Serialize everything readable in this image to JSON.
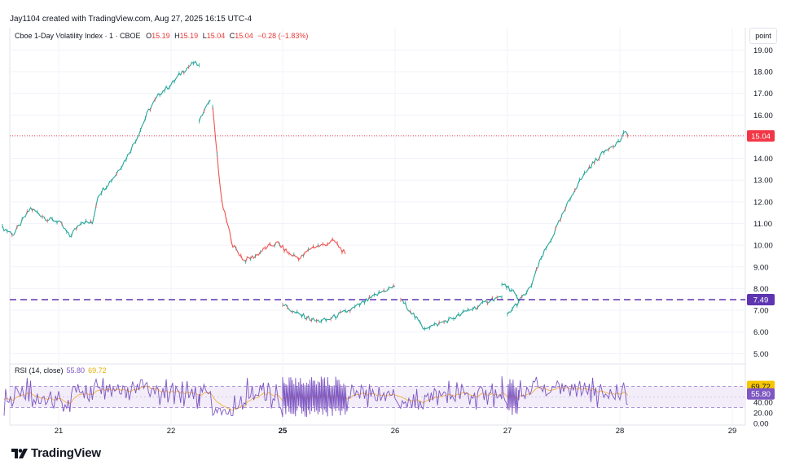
{
  "header": {
    "caption": "Jay1104 created with TradingView.com, Aug 27, 2025 16:15 UTC-4"
  },
  "legend": {
    "symbol": "Cboe 1-Day Volatility Index · 1 · CBOE",
    "open_label": "O",
    "open": "15.19",
    "high_label": "H",
    "high": "15.19",
    "low_label": "L",
    "low": "15.04",
    "close_label": "C",
    "close": "15.04",
    "change": "−0.28 (−1.83%)"
  },
  "rsi_legend": {
    "label": "RSI (14, close)",
    "rsi": "55.80",
    "ma": "69.72"
  },
  "unit_button": "point",
  "logo_text": "TradingView",
  "colors": {
    "up": "#26a69a",
    "down": "#ef5350",
    "dashed_level": "#5e35b1",
    "rsi_line": "#7e57c2",
    "rsi_ma": "#f5b041",
    "rsi_band": "#ede7f6",
    "last_price": "#f23645"
  },
  "chart_data": [
    {
      "type": "line",
      "title": "Cboe 1-Day Volatility Index · 1 · CBOE",
      "x_tick_labels": [
        "21",
        "22",
        "25",
        "26",
        "27",
        "28",
        "29"
      ],
      "y_ticks": [
        "19.00",
        "18.00",
        "17.00",
        "16.00",
        "15.00",
        "14.00",
        "13.00",
        "12.00",
        "11.00",
        "10.00",
        "9.00",
        "8.00",
        "7.00",
        "6.00",
        "5.00"
      ],
      "ylim": [
        4.6,
        19.5
      ],
      "last_price": "15.04",
      "horizontal_level": "7.49",
      "series": [
        {
          "segments": [
            [
              [
                20.5,
                10.8
              ],
              [
                20.6,
                10.5
              ],
              [
                20.75,
                11.7
              ],
              [
                20.9,
                11.2
              ],
              [
                21.0,
                11.1
              ],
              [
                21.1,
                10.4
              ],
              [
                21.2,
                11.1
              ],
              [
                21.3,
                11.0
              ],
              [
                21.35,
                12.3
              ],
              [
                21.5,
                13.2
              ],
              [
                21.6,
                14.0
              ],
              [
                21.7,
                15.0
              ],
              [
                21.8,
                16.2
              ],
              [
                21.9,
                17.0
              ],
              [
                22.0,
                17.4
              ],
              [
                22.1,
                18.0
              ],
              [
                22.2,
                18.4
              ],
              [
                22.25,
                18.3
              ]
            ],
            [
              [
                22.25,
                15.8
              ],
              [
                22.35,
                16.7
              ]
            ],
            [
              [
                22.37,
                16.3
              ],
              [
                22.45,
                12.0
              ],
              [
                22.55,
                10.0
              ],
              [
                22.65,
                9.3
              ],
              [
                22.75,
                9.5
              ],
              [
                22.85,
                9.9
              ],
              [
                22.95,
                10.1
              ],
              [
                23.05,
                9.6
              ],
              [
                23.15,
                9.4
              ],
              [
                23.25,
                9.9
              ],
              [
                23.35,
                10.0
              ],
              [
                23.45,
                10.2
              ],
              [
                23.55,
                9.6
              ]
            ],
            [
              [
                25.0,
                7.3
              ],
              [
                25.1,
                6.9
              ],
              [
                25.2,
                6.7
              ],
              [
                25.3,
                6.5
              ],
              [
                25.4,
                6.55
              ],
              [
                25.5,
                6.8
              ],
              [
                25.6,
                7.0
              ],
              [
                25.7,
                7.3
              ],
              [
                25.8,
                7.6
              ],
              [
                25.9,
                7.9
              ],
              [
                26.0,
                8.1
              ]
            ],
            [
              [
                26.05,
                7.5
              ],
              [
                26.15,
                6.9
              ],
              [
                26.25,
                6.2
              ],
              [
                26.35,
                6.3
              ],
              [
                26.45,
                6.5
              ],
              [
                26.55,
                6.7
              ],
              [
                26.65,
                7.0
              ],
              [
                26.75,
                7.2
              ],
              [
                26.85,
                7.5
              ],
              [
                26.95,
                7.6
              ]
            ],
            [
              [
                26.95,
                8.2
              ],
              [
                27.05,
                7.9
              ],
              [
                27.1,
                7.4
              ]
            ],
            [
              [
                27.0,
                6.8
              ],
              [
                27.1,
                7.4
              ],
              [
                27.2,
                8.0
              ],
              [
                27.3,
                9.4
              ],
              [
                27.4,
                10.4
              ],
              [
                27.5,
                11.5
              ],
              [
                27.6,
                12.6
              ],
              [
                27.7,
                13.4
              ],
              [
                27.8,
                14.0
              ],
              [
                27.9,
                14.5
              ],
              [
                28.0,
                14.8
              ],
              [
                28.05,
                15.3
              ],
              [
                28.07,
                15.04
              ]
            ]
          ]
        }
      ]
    },
    {
      "type": "line",
      "title": "RSI (14, close)",
      "y_ticks": [
        "60.00",
        "40.00",
        "20.00",
        "0.00"
      ],
      "ylim": [
        0,
        100
      ],
      "upper_band": 70,
      "lower_band": 30,
      "latest_rsi": "55.80",
      "latest_ma": "69.72"
    }
  ]
}
